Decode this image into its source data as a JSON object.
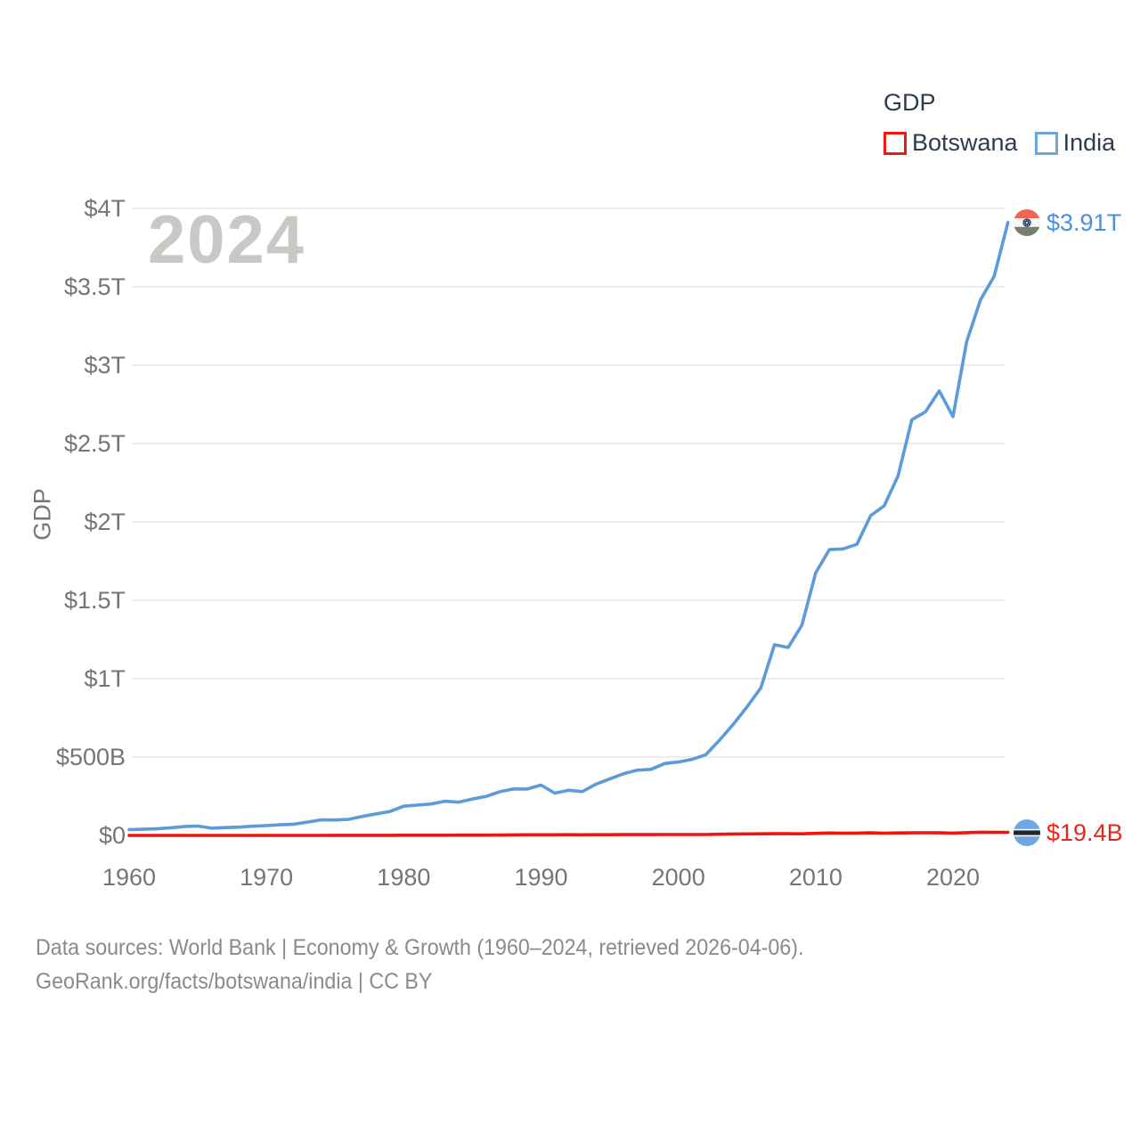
{
  "legend": {
    "title": "GDP",
    "items": [
      {
        "label": "Botswana",
        "color": "#f21711"
      },
      {
        "label": "India",
        "color": "#6aa5e0"
      }
    ]
  },
  "watermark": "2024",
  "y_axis": {
    "label": "GDP"
  },
  "end_labels": {
    "india": "$3.91T",
    "botswana": "$19.4B"
  },
  "footer": {
    "line1": "Data sources: World Bank | Economy & Growth (1960–2024, retrieved 2026-04-06).",
    "line2": "GeoRank.org/facts/botswana/india | CC BY"
  },
  "colors": {
    "india_line": "#5b9bd8",
    "botswana_line": "#ee1410",
    "india_label": "#4a90d9",
    "botswana_label": "#e8261f",
    "grid": "#ededed",
    "tick_text": "#757575",
    "legend_text": "#2c3b4e",
    "watermark": "#c8c8c5",
    "footer_text": "#8a8a8a"
  },
  "chart_data": {
    "type": "line",
    "title": "GDP",
    "ylabel": "GDP",
    "x_start": 1960,
    "x_end": 2024,
    "x_tick_labels": [
      "1960",
      "1970",
      "1980",
      "1990",
      "2000",
      "2010",
      "2020"
    ],
    "y_ticks": [
      {
        "label": "$0",
        "value": 0
      },
      {
        "label": "$500B",
        "value": 500
      },
      {
        "label": "$1T",
        "value": 1000
      },
      {
        "label": "$1.5T",
        "value": 1500
      },
      {
        "label": "$2T",
        "value": 2000
      },
      {
        "label": "$2.5T",
        "value": 2500
      },
      {
        "label": "$3T",
        "value": 3000
      },
      {
        "label": "$3.5T",
        "value": 3500
      },
      {
        "label": "$4T",
        "value": 4000
      }
    ],
    "ylim_billions": [
      0,
      4000
    ],
    "grid": true,
    "legend_position": "top-right",
    "series": [
      {
        "name": "India",
        "color": "#5b9bd8",
        "end_label": "$3.91T",
        "values_billions": [
          37.0,
          39.2,
          42.2,
          48.4,
          56.5,
          59.6,
          45.9,
          50.1,
          53.1,
          58.4,
          62.4,
          67.4,
          71.5,
          85.5,
          99.5,
          98.5,
          102.7,
          121.5,
          137.3,
          153.0,
          186.3,
          193.5,
          200.7,
          218.3,
          212.2,
          232.5,
          249.0,
          279.0,
          296.6,
          296.0,
          321.0,
          270.1,
          288.2,
          279.3,
          327.3,
          360.3,
          392.9,
          415.9,
          421.4,
          458.8,
          468.4,
          485.4,
          514.9,
          607.7,
          709.1,
          820.4,
          940.3,
          1216.7,
          1198.9,
          1341.9,
          1675.6,
          1823.1,
          1827.6,
          1856.7,
          2039.1,
          2103.6,
          2294.8,
          2651.5,
          2702.9,
          2835.6,
          2671.6,
          3150.3,
          3416.6,
          3567.6,
          3910.0
        ]
      },
      {
        "name": "Botswana",
        "color": "#ee1410",
        "end_label": "$19.4B",
        "values_billions": [
          0.03,
          0.03,
          0.03,
          0.04,
          0.04,
          0.05,
          0.05,
          0.06,
          0.07,
          0.08,
          0.1,
          0.12,
          0.16,
          0.21,
          0.27,
          0.3,
          0.35,
          0.43,
          0.53,
          0.7,
          1.06,
          1.13,
          1.21,
          1.4,
          1.56,
          1.62,
          1.93,
          2.5,
          3.18,
          3.8,
          3.79,
          3.95,
          4.27,
          4.16,
          4.36,
          4.7,
          4.85,
          5.14,
          5.27,
          5.7,
          5.79,
          5.49,
          5.44,
          7.53,
          8.99,
          9.93,
          10.13,
          10.94,
          10.95,
          10.27,
          12.79,
          15.47,
          14.42,
          14.9,
          16.25,
          14.42,
          15.65,
          16.61,
          17.09,
          16.69,
          14.93,
          17.61,
          20.35,
          19.4,
          19.4
        ]
      }
    ]
  }
}
